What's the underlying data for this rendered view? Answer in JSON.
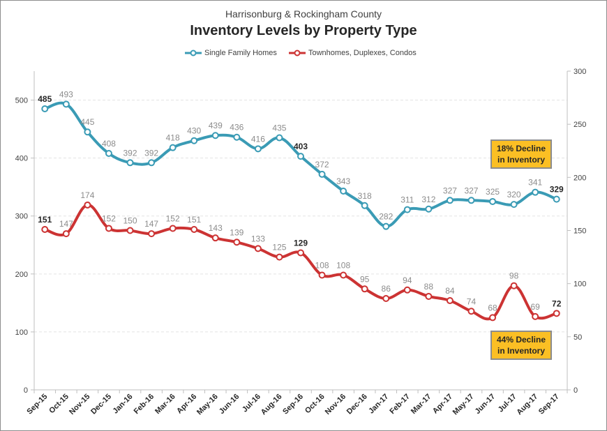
{
  "header": {
    "subtitle": "Harrisonburg & Rockingham County",
    "title": "Inventory Levels by Property Type"
  },
  "legend": {
    "sfh": "Single Family Homes",
    "th": "Townhomes, Duplexes, Condos"
  },
  "callouts": {
    "sfh_line1": "18% Decline",
    "sfh_line2": "in Inventory",
    "th_line1": "44% Decline",
    "th_line2": "in Inventory"
  },
  "colors": {
    "sfh": "#3a9bb5",
    "th": "#cc3333",
    "callout_fill": "#fbbf24"
  },
  "chart_data": {
    "type": "line",
    "categories": [
      "Sep-15",
      "Oct-15",
      "Nov-15",
      "Dec-15",
      "Jan-16",
      "Feb-16",
      "Mar-16",
      "Apr-16",
      "May-16",
      "Jun-16",
      "Jul-16",
      "Aug-16",
      "Sep-16",
      "Oct-16",
      "Nov-16",
      "Dec-16",
      "Jan-17",
      "Feb-17",
      "Mar-17",
      "Apr-17",
      "May-17",
      "Jun-17",
      "Jul-17",
      "Aug-17",
      "Sep-17"
    ],
    "series": [
      {
        "name": "Single Family Homes",
        "axis": "left",
        "values": [
          485,
          493,
          445,
          408,
          392,
          392,
          418,
          430,
          439,
          436,
          416,
          435,
          403,
          372,
          343,
          318,
          282,
          311,
          312,
          327,
          327,
          325,
          320,
          341,
          329
        ],
        "bold_labels": [
          "Sep-15",
          "Sep-16",
          "Sep-17"
        ]
      },
      {
        "name": "Townhomes, Duplexes, Condos",
        "axis": "right",
        "values": [
          151,
          147,
          174,
          152,
          150,
          147,
          152,
          151,
          143,
          139,
          133,
          125,
          129,
          108,
          108,
          95,
          86,
          94,
          88,
          84,
          74,
          68,
          98,
          69,
          72
        ],
        "bold_labels": [
          "Sep-15",
          "Sep-16",
          "Sep-17"
        ]
      }
    ],
    "y_left": {
      "min": 0,
      "max": 550,
      "ticks": [
        0,
        100,
        200,
        300,
        400,
        500
      ]
    },
    "y_right": {
      "min": 0,
      "max": 300,
      "ticks": [
        0,
        50,
        100,
        150,
        200,
        250,
        300
      ]
    },
    "gridlines": true
  }
}
